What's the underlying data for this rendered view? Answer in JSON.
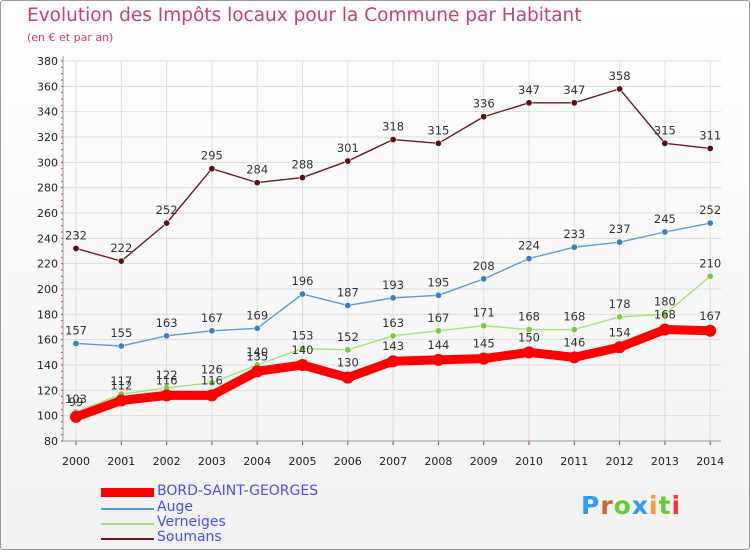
{
  "title": "Evolution des Impôts locaux pour la Commune par Habitant",
  "subtitle": "(en € et par an)",
  "logo": {
    "text": "Proxiti",
    "colors": [
      "#3399ff",
      "#cc6633",
      "#66cc33",
      "#3399ff",
      "#ff9933",
      "#66cc33",
      "#ff3333"
    ]
  },
  "chart_data": {
    "type": "line",
    "title": "Evolution des Impôts locaux pour la Commune par Habitant",
    "subtitle": "(en € et par an)",
    "x": [
      "2000",
      "2001",
      "2002",
      "2003",
      "2004",
      "2005",
      "2006",
      "2007",
      "2008",
      "2009",
      "2010",
      "2011",
      "2012",
      "2013",
      "2014"
    ],
    "ylim": [
      80,
      380
    ],
    "yticks": [
      80,
      100,
      120,
      140,
      160,
      180,
      200,
      220,
      240,
      260,
      280,
      300,
      320,
      340,
      360,
      380
    ],
    "grid": true,
    "legend_position": "bottom-left",
    "series": [
      {
        "name": "Soumans",
        "color": "#6b1a22",
        "marker": "#5a1018",
        "values": [
          232,
          222,
          252,
          295,
          284,
          288,
          301,
          318,
          315,
          336,
          347,
          347,
          358,
          315,
          311
        ]
      },
      {
        "name": "Auge",
        "color": "#5b9bd5",
        "marker": "#3a7fc4",
        "values": [
          157,
          155,
          163,
          167,
          169,
          196,
          187,
          193,
          195,
          208,
          224,
          233,
          237,
          245,
          252
        ]
      },
      {
        "name": "Verneiges",
        "color": "#a8e27a",
        "marker": "#7ccc3a",
        "values": [
          103,
          117,
          122,
          126,
          140,
          153,
          152,
          163,
          167,
          171,
          168,
          168,
          178,
          180,
          210
        ]
      },
      {
        "name": "BORD-SAINT-GEORGES",
        "color": "#ff0000",
        "marker": "#ff0000",
        "values": [
          99,
          112,
          116,
          116,
          135,
          140,
          130,
          143,
          144,
          145,
          150,
          146,
          154,
          168,
          167
        ]
      }
    ]
  }
}
